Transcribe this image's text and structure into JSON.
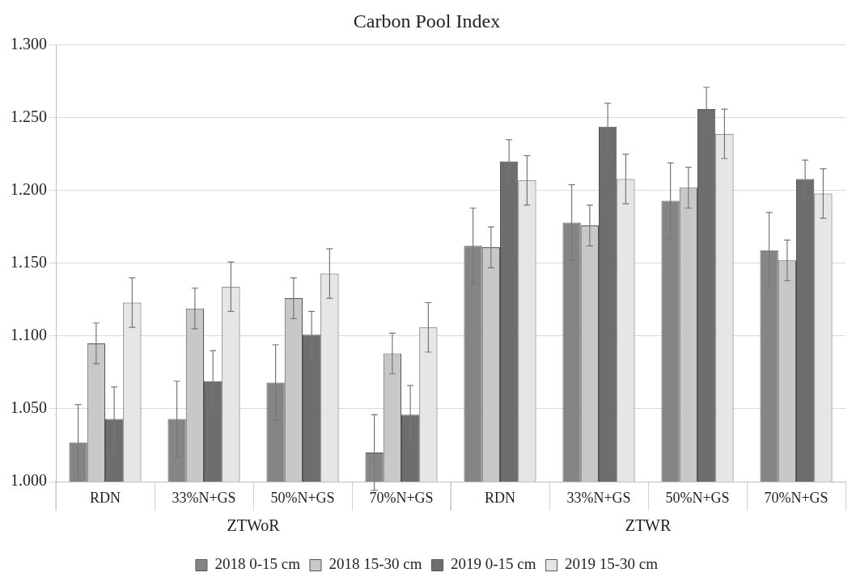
{
  "chart_data": {
    "type": "bar",
    "title": "Carbon Pool Index",
    "categories": [
      "RDN",
      "33%N+GS",
      "50%N+GS",
      "70%N+GS",
      "RDN",
      "33%N+GS",
      "50%N+GS",
      "70%N+GS"
    ],
    "series": [
      {
        "name": "2018 0-15 cm",
        "color": "#858585",
        "values": [
          1.027,
          1.043,
          1.068,
          1.02,
          1.162,
          1.178,
          1.193,
          1.159
        ],
        "errors": [
          0.026,
          0.026,
          0.026,
          0.026,
          0.026,
          0.026,
          0.026,
          0.026
        ]
      },
      {
        "name": "2018 15-30 cm",
        "color": "#c8c8ca",
        "values": [
          1.095,
          1.119,
          1.126,
          1.088,
          1.161,
          1.176,
          1.202,
          1.152
        ],
        "errors": [
          0.014,
          0.014,
          0.014,
          0.014,
          0.014,
          0.014,
          0.014,
          0.014
        ]
      },
      {
        "name": "2019 0-15 cm",
        "color": "#6e6e6e",
        "values": [
          1.043,
          1.069,
          1.101,
          1.046,
          1.22,
          1.244,
          1.256,
          1.208
        ],
        "errors": [
          0.022,
          0.021,
          0.016,
          0.02,
          0.015,
          0.016,
          0.015,
          0.013
        ]
      },
      {
        "name": "2019 15-30 cm",
        "color": "#e6e6e6",
        "values": [
          1.123,
          1.134,
          1.143,
          1.106,
          1.207,
          1.208,
          1.239,
          1.198
        ],
        "errors": [
          0.017,
          0.017,
          0.017,
          0.017,
          0.017,
          0.017,
          0.017,
          0.017
        ]
      }
    ],
    "annotations": [
      "ZTWoR",
      "ZTWR"
    ],
    "ylim": [
      1.0,
      1.3
    ],
    "yticks": [
      {
        "value": 1.0,
        "label": "1.000"
      },
      {
        "value": 1.05,
        "label": "1.050"
      },
      {
        "value": 1.1,
        "label": "1.100"
      },
      {
        "value": 1.15,
        "label": "1.150"
      },
      {
        "value": 1.2,
        "label": "1.200"
      },
      {
        "value": 1.25,
        "label": "1.250"
      },
      {
        "value": 1.3,
        "label": "1.300"
      }
    ],
    "grid": "y",
    "legend": "bottom"
  }
}
